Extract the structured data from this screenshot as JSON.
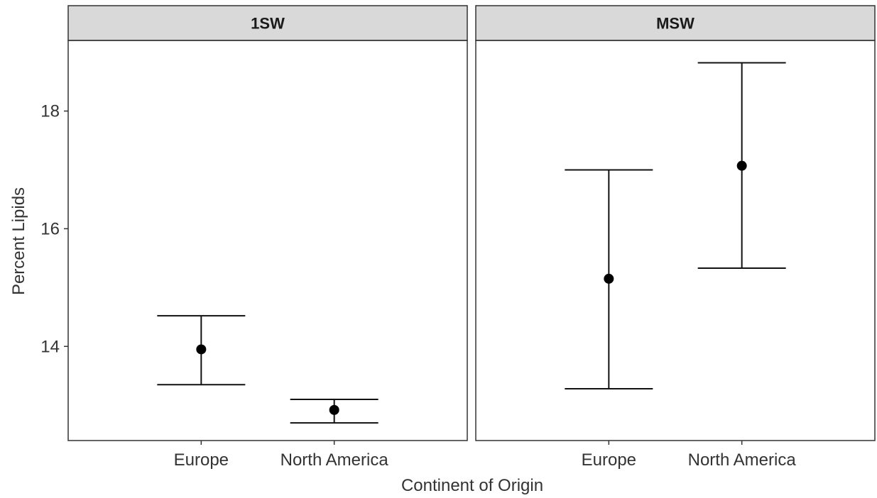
{
  "chart_data": {
    "type": "scatter",
    "subtype": "point-with-errorbars",
    "facet_by": "panel",
    "panels": [
      {
        "title": "1SW",
        "points": [
          {
            "category": "Europe",
            "y": 13.95,
            "ymin": 13.35,
            "ymax": 14.52
          },
          {
            "category": "North America",
            "y": 12.92,
            "ymin": 12.7,
            "ymax": 13.1
          }
        ]
      },
      {
        "title": "MSW",
        "points": [
          {
            "category": "Europe",
            "y": 15.15,
            "ymin": 13.28,
            "ymax": 17.0
          },
          {
            "category": "North America",
            "y": 17.07,
            "ymin": 15.33,
            "ymax": 18.82
          }
        ]
      }
    ],
    "categories": [
      "Europe",
      "North America"
    ],
    "xlabel": "Continent of Origin",
    "ylabel": "Percent Lipids",
    "ylim": [
      12.4,
      19.2
    ],
    "yticks": [
      14,
      16,
      18
    ],
    "grid": false,
    "legend": "none",
    "colors": {
      "point": "#000000",
      "errorbar": "#111111",
      "strip": "#d9d9d9",
      "border": "#333333"
    }
  }
}
